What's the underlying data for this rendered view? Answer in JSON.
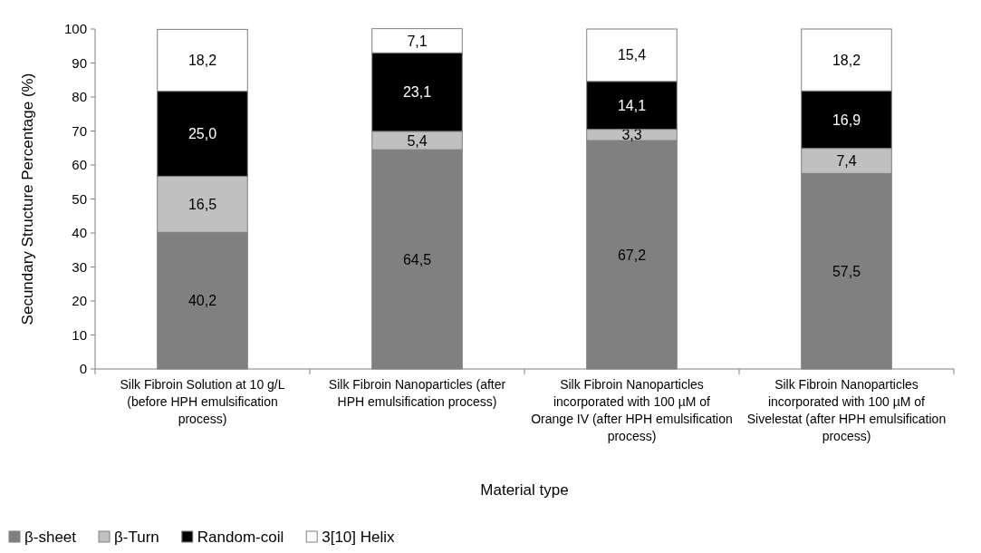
{
  "chart_data": {
    "type": "bar",
    "stacked": true,
    "xlabel": "Material type",
    "ylabel": "Secundary Structure Percentage  (%)",
    "categories": [
      "Silk Fibroin Solution at 10 g/L (before HPH emulsification process)",
      "Silk Fibroin Nanoparticles (after HPH emulsification process)",
      "Silk Fibroin Nanoparticles incorporated with 100 µM of Orange IV (after HPH emulsification process)",
      "Silk Fibroin Nanoparticles incorporated with 100 µM of Sivelestat (after HPH emulsification process)"
    ],
    "series": [
      {
        "name": "β-sheet",
        "color": "#808080",
        "values": [
          40.2,
          64.5,
          67.2,
          57.5
        ],
        "value_labels": [
          "40,2",
          "64,5",
          "67,2",
          "57,5"
        ]
      },
      {
        "name": "β-Turn",
        "color": "#c0c0c0",
        "values": [
          16.5,
          5.4,
          3.3,
          7.4
        ],
        "value_labels": [
          "16,5",
          "5,4",
          "3,3",
          "7,4"
        ]
      },
      {
        "name": "Random-coil",
        "color": "#000000",
        "values": [
          25.0,
          23.1,
          14.1,
          16.9
        ],
        "value_labels": [
          "25,0",
          "23,1",
          "14,1",
          "16,9"
        ]
      },
      {
        "name": "3[10] Helix",
        "color": "#ffffff",
        "values": [
          18.2,
          7.1,
          15.4,
          18.2
        ],
        "value_labels": [
          "18,2",
          "7,1",
          "15,4",
          "18,2"
        ]
      }
    ],
    "ylim": [
      0,
      100
    ],
    "yticks": [
      0,
      10,
      20,
      30,
      40,
      50,
      60,
      70,
      80,
      90,
      100
    ],
    "grid": false,
    "legend": "bottom"
  }
}
